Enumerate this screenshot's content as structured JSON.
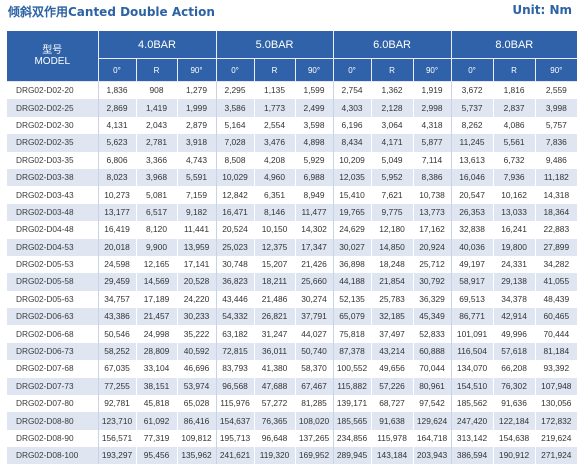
{
  "header": {
    "title": "倾斜双作用Canted Double Action",
    "unit": "Unit: Nm"
  },
  "table": {
    "model_label_cn": "型号",
    "model_label_en": "MODEL",
    "pressures": [
      "4.0BAR",
      "5.0BAR",
      "6.0BAR",
      "8.0BAR"
    ],
    "sub_headers": [
      "0°",
      "R",
      "90°"
    ],
    "rows": [
      {
        "model": "DRG02-D02-20",
        "v": [
          "1,836",
          "908",
          "1,279",
          "2,295",
          "1,135",
          "1,599",
          "2,754",
          "1,362",
          "1,919",
          "3,672",
          "1,816",
          "2,559"
        ]
      },
      {
        "model": "DRG02-D02-25",
        "v": [
          "2,869",
          "1,419",
          "1,999",
          "3,586",
          "1,773",
          "2,499",
          "4,303",
          "2,128",
          "2,998",
          "5,737",
          "2,837",
          "3,998"
        ]
      },
      {
        "model": "DRG02-D02-30",
        "v": [
          "4,131",
          "2,043",
          "2,879",
          "5,164",
          "2,554",
          "3,598",
          "6,196",
          "3,064",
          "4,318",
          "8,262",
          "4,086",
          "5,757"
        ]
      },
      {
        "model": "DRG02-D02-35",
        "v": [
          "5,623",
          "2,781",
          "3,918",
          "7,028",
          "3,476",
          "4,898",
          "8,434",
          "4,171",
          "5,877",
          "11,245",
          "5,561",
          "7,836"
        ]
      },
      {
        "model": "DRG02-D03-35",
        "v": [
          "6,806",
          "3,366",
          "4,743",
          "8,508",
          "4,208",
          "5,929",
          "10,209",
          "5,049",
          "7,114",
          "13,613",
          "6,732",
          "9,486"
        ]
      },
      {
        "model": "DRG02-D03-38",
        "v": [
          "8,023",
          "3,968",
          "5,591",
          "10,029",
          "4,960",
          "6,988",
          "12,035",
          "5,952",
          "8,386",
          "16,046",
          "7,936",
          "11,182"
        ]
      },
      {
        "model": "DRG02-D03-43",
        "v": [
          "10,273",
          "5,081",
          "7,159",
          "12,842",
          "6,351",
          "8,949",
          "15,410",
          "7,621",
          "10,738",
          "20,547",
          "10,162",
          "14,318"
        ]
      },
      {
        "model": "DRG02-D03-48",
        "v": [
          "13,177",
          "6,517",
          "9,182",
          "16,471",
          "8,146",
          "11,477",
          "19,765",
          "9,775",
          "13,773",
          "26,353",
          "13,033",
          "18,364"
        ]
      },
      {
        "model": "DRG02-D04-48",
        "v": [
          "16,419",
          "8,120",
          "11,441",
          "20,524",
          "10,150",
          "14,302",
          "24,629",
          "12,180",
          "17,162",
          "32,838",
          "16,241",
          "22,883"
        ]
      },
      {
        "model": "DRG02-D04-53",
        "v": [
          "20,018",
          "9,900",
          "13,959",
          "25,023",
          "12,375",
          "17,347",
          "30,027",
          "14,850",
          "20,924",
          "40,036",
          "19,800",
          "27,899"
        ]
      },
      {
        "model": "DRG02-D05-53",
        "v": [
          "24,598",
          "12,165",
          "17,141",
          "30,748",
          "15,207",
          "21,426",
          "36,898",
          "18,248",
          "25,712",
          "49,197",
          "24,331",
          "34,282"
        ]
      },
      {
        "model": "DRG02-D05-58",
        "v": [
          "29,459",
          "14,569",
          "20,528",
          "36,823",
          "18,211",
          "25,660",
          "44,188",
          "21,854",
          "30,792",
          "58,917",
          "29,138",
          "41,055"
        ]
      },
      {
        "model": "DRG02-D05-63",
        "v": [
          "34,757",
          "17,189",
          "24,220",
          "43,446",
          "21,486",
          "30,274",
          "52,135",
          "25,783",
          "36,329",
          "69,513",
          "34,378",
          "48,439"
        ]
      },
      {
        "model": "DRG02-D06-63",
        "v": [
          "43,386",
          "21,457",
          "30,233",
          "54,332",
          "26,821",
          "37,791",
          "65,079",
          "32,185",
          "45,349",
          "86,771",
          "42,914",
          "60,465"
        ]
      },
      {
        "model": "DRG02-D06-68",
        "v": [
          "50,546",
          "24,998",
          "35,222",
          "63,182",
          "31,247",
          "44,027",
          "75,818",
          "37,497",
          "52,833",
          "101,091",
          "49,996",
          "70,444"
        ]
      },
      {
        "model": "DRG02-D06-73",
        "v": [
          "58,252",
          "28,809",
          "40,592",
          "72,815",
          "36,011",
          "50,740",
          "87,378",
          "43,214",
          "60,888",
          "116,504",
          "57,618",
          "81,184"
        ]
      },
      {
        "model": "DRG02-D07-68",
        "v": [
          "67,035",
          "33,104",
          "46,696",
          "83,793",
          "41,380",
          "58,370",
          "100,552",
          "49,656",
          "70,044",
          "134,070",
          "66,208",
          "93,392"
        ]
      },
      {
        "model": "DRG02-D07-73",
        "v": [
          "77,255",
          "38,151",
          "53,974",
          "96,568",
          "47,688",
          "67,467",
          "115,882",
          "57,226",
          "80,961",
          "154,510",
          "76,302",
          "107,948"
        ]
      },
      {
        "model": "DRG02-D07-80",
        "v": [
          "92,781",
          "45,818",
          "65,028",
          "115,976",
          "57,272",
          "81,285",
          "139,171",
          "68,727",
          "97,542",
          "185,562",
          "91,636",
          "130,056"
        ]
      },
      {
        "model": "DRG02-D08-80",
        "v": [
          "123,710",
          "61,092",
          "86,416",
          "154,637",
          "76,365",
          "108,020",
          "185,565",
          "91,638",
          "129,624",
          "247,420",
          "122,184",
          "172,832"
        ]
      },
      {
        "model": "DRG02-D08-90",
        "v": [
          "156,571",
          "77,319",
          "109,812",
          "195,713",
          "96,648",
          "137,265",
          "234,856",
          "115,978",
          "164,718",
          "313,142",
          "154,638",
          "219,624"
        ]
      },
      {
        "model": "DRG02-D08-100",
        "v": [
          "193,297",
          "95,456",
          "135,962",
          "241,621",
          "119,320",
          "169,952",
          "289,945",
          "143,184",
          "203,943",
          "386,594",
          "190,912",
          "271,924"
        ]
      }
    ]
  }
}
